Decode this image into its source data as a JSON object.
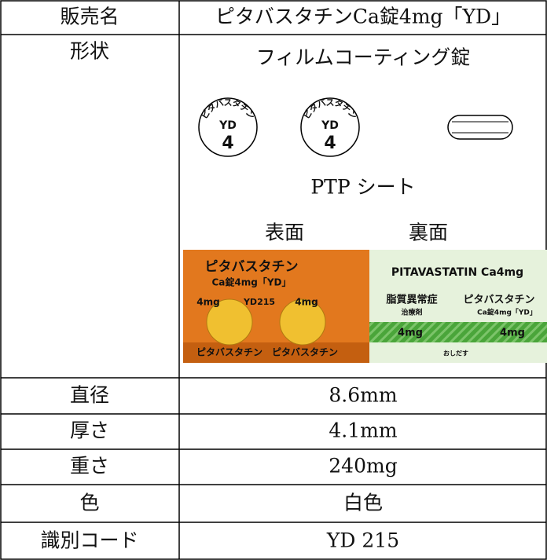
{
  "table": {
    "rows": [
      {
        "label": "販売名",
        "value": "ピタバスタチンCa錠4mg「YD」"
      },
      {
        "label": "形状",
        "value": "フィルムコーティング錠",
        "tablet_imprint": {
          "ring": "ピタバスタチン",
          "code": "YD",
          "strength": "4"
        },
        "ptp_title": "PTP シート",
        "ptp_sides": [
          "表面",
          "裏面"
        ],
        "ptp_front_texts": [
          "ピタバスタチン",
          "Ca錠4mg「YD」",
          "4mg",
          "YD215",
          "4mg",
          "ピタバスタチン　ピタバスタチン"
        ],
        "ptp_back_texts": [
          "PITAVASTATIN Ca4mg",
          "脂質異常症",
          "治療剤",
          "ピタバスタチン",
          "Ca錠4mg「YD」",
          "4mg",
          "4mg",
          "おしだす"
        ]
      },
      {
        "label": "直径",
        "value": "8.6mm"
      },
      {
        "label": "厚さ",
        "value": "4.1mm"
      },
      {
        "label": "重さ",
        "value": "240mg"
      },
      {
        "label": "色",
        "value": "白色"
      },
      {
        "label": "識別コード",
        "value": "YD 215"
      }
    ]
  }
}
